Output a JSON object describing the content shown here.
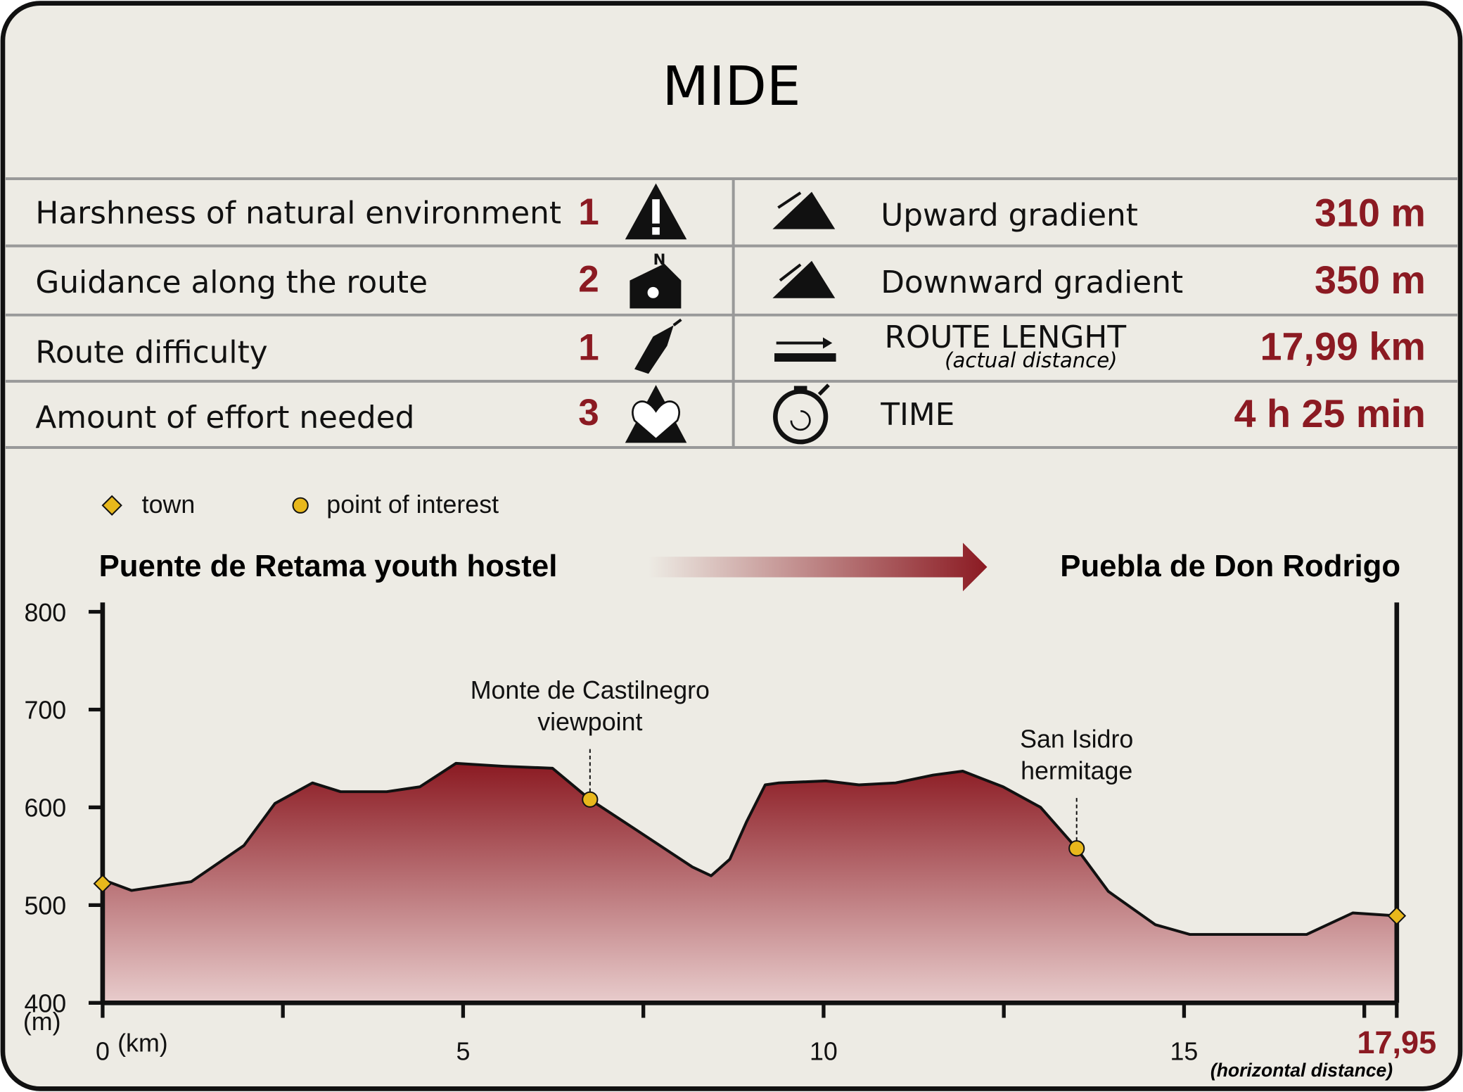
{
  "title": "MIDE",
  "mide": {
    "rows": [
      {
        "label": "Harshness of natural environment",
        "value": "1"
      },
      {
        "label": "Guidance along the route",
        "value": "2"
      },
      {
        "label": "Route difficulty",
        "value": "1"
      },
      {
        "label": "Amount of effort needed",
        "value": "3"
      }
    ]
  },
  "route": {
    "rows": [
      {
        "label": "Upward gradient",
        "value": "310 m"
      },
      {
        "label": "Downward gradient",
        "value": "350 m"
      },
      {
        "label": "ROUTE LENGHT",
        "note": "(actual distance)",
        "value": "17,99 km"
      },
      {
        "label": "TIME",
        "value": "4 h 25 min"
      }
    ]
  },
  "chart_data": {
    "type": "area",
    "legend": {
      "town": "town",
      "point_of_interest": "point of interest"
    },
    "start": "Puente de Retama youth hostel",
    "end": "Puebla de Don Rodrigo",
    "x_unit": "(km)",
    "y_unit": "(m)",
    "x_note": "(horizontal distance)",
    "x": [
      0,
      0.4,
      1.23,
      1.96,
      2.39,
      2.91,
      3.3,
      3.94,
      4.4,
      4.9,
      5.56,
      6.24,
      6.76,
      7.38,
      8.18,
      8.44,
      8.7,
      8.93,
      9.19,
      9.38,
      10.03,
      10.49,
      11.0,
      11.52,
      11.93,
      12.49,
      13.01,
      13.51,
      13.95,
      14.6,
      15.08,
      16.7,
      17.34,
      17.95
    ],
    "values": [
      526,
      515,
      524,
      561,
      604,
      625,
      616,
      616,
      621,
      645,
      642,
      640,
      608,
      578,
      539,
      530,
      547,
      585,
      623,
      625,
      627,
      623,
      625,
      633,
      637,
      621,
      600,
      558,
      514,
      480,
      470,
      470,
      492,
      489
    ],
    "towns": [
      {
        "x": 0,
        "y": 522
      },
      {
        "x": 17.95,
        "y": 489
      }
    ],
    "points_of_interest": [
      {
        "label": [
          "Monte de Castilnegro",
          "viewpoint"
        ],
        "x": 6.76,
        "y": 608
      },
      {
        "label": [
          "San Isidro",
          "hermitage"
        ],
        "x": 13.51,
        "y": 558
      }
    ],
    "xlim": [
      0,
      17.95
    ],
    "ylim": [
      400,
      800
    ],
    "xticks": [
      0,
      5,
      10,
      15,
      {
        "value": 17.95,
        "label": "17,95"
      }
    ],
    "minor_xticks": [
      2.5,
      7.5,
      12.5,
      17.5
    ],
    "yticks": [
      400,
      500,
      600,
      700,
      800
    ],
    "colors": {
      "fill_top": "#8b1a22",
      "fill_bottom": "#e8cccc",
      "town": "#e8b81c",
      "point_of_interest": "#e8b81c"
    }
  }
}
